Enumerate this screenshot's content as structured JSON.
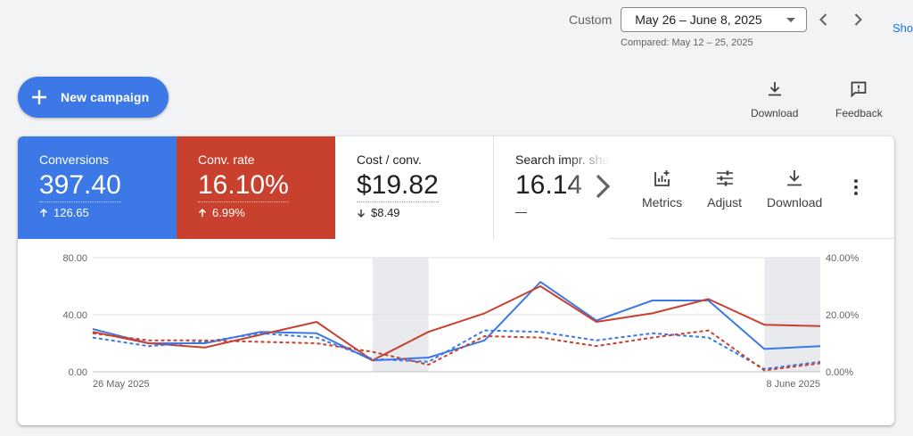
{
  "header": {
    "date_mode": "Custom",
    "date_range": "May 26 – June 8, 2025",
    "compared": "Compared: May 12 – 25, 2025",
    "show_link": "Sho"
  },
  "new_campaign_label": "New campaign",
  "top_actions": {
    "download": "Download",
    "feedback": "Feedback"
  },
  "metrics": [
    {
      "label": "Conversions",
      "value": "397.40",
      "delta": "126.65",
      "direction": "up"
    },
    {
      "label": "Conv. rate",
      "value": "16.10%",
      "delta": "6.99%",
      "direction": "up"
    },
    {
      "label": "Cost / conv.",
      "value": "$19.82",
      "delta": "$8.49",
      "direction": "down"
    },
    {
      "label": "Search impr. share",
      "value": "16.14",
      "delta": "—",
      "direction": "none"
    }
  ],
  "tools": {
    "metrics": "Metrics",
    "adjust": "Adjust",
    "download": "Download"
  },
  "colors": {
    "blue": "#3c78e6",
    "red": "#c8412f"
  },
  "chart_data": {
    "type": "line",
    "x": [
      "26 May 2025",
      "27 May 2025",
      "28 May 2025",
      "29 May 2025",
      "30 May 2025",
      "31 May 2025",
      "1 June 2025",
      "2 June 2025",
      "3 June 2025",
      "4 June 2025",
      "5 June 2025",
      "6 June 2025",
      "7 June 2025",
      "8 June 2025"
    ],
    "x_tick_labels": [
      "26 May 2025",
      "8 June 2025"
    ],
    "y_left": {
      "ticks": [
        "80.00",
        "40.00",
        "0.00"
      ],
      "range": [
        0,
        80
      ]
    },
    "y_right": {
      "ticks": [
        "40.00%",
        "20.00%",
        "0.00%"
      ],
      "range": [
        0,
        40
      ]
    },
    "shaded_x": [
      "31 May 2025",
      "1 June 2025",
      "7 June 2025",
      "8 June 2025"
    ],
    "series": [
      {
        "axis": "left",
        "color": "#3c78e6",
        "style": "solid",
        "values": [
          30,
          20,
          20,
          28,
          27,
          8,
          10,
          22,
          63,
          36,
          50,
          50,
          16,
          18
        ]
      },
      {
        "axis": "right",
        "color": "#c8412f",
        "style": "solid",
        "values": [
          14,
          10,
          8.5,
          13,
          17.5,
          4,
          14,
          20.5,
          30,
          17.5,
          20.5,
          25.5,
          16.5,
          16
        ]
      },
      {
        "axis": "left",
        "color": "#3c78e6",
        "style": "dashed",
        "values": [
          24,
          18,
          21,
          27,
          24,
          9,
          7,
          29,
          28,
          22,
          27,
          24,
          2,
          7
        ]
      },
      {
        "axis": "right",
        "color": "#c8412f",
        "style": "dashed",
        "values": [
          13.5,
          11,
          11,
          10.5,
          10,
          7,
          2.5,
          12.5,
          12,
          9,
          12,
          14.5,
          0.5,
          3
        ]
      }
    ]
  }
}
